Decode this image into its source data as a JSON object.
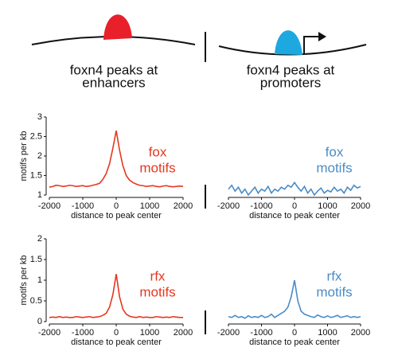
{
  "diagram": {
    "left_label": [
      "foxn4 peaks at",
      "enhancers"
    ],
    "right_label": [
      "foxn4 peaks at",
      "promoters"
    ]
  },
  "chart_data": [
    {
      "type": "line",
      "annotation": [
        "fox",
        "motifs"
      ],
      "xlabel": "distance to peak center",
      "ylabel": "motifs per kb",
      "xlim": [
        -2000,
        2000
      ],
      "xticks": [
        -2000,
        -1000,
        0,
        1000,
        2000
      ],
      "ylim": [
        1,
        3
      ],
      "yticks": [
        1,
        1.5,
        2,
        2.5,
        3
      ],
      "x": [
        -2000,
        -1900,
        -1800,
        -1700,
        -1600,
        -1500,
        -1400,
        -1300,
        -1200,
        -1100,
        -1000,
        -900,
        -800,
        -700,
        -600,
        -500,
        -400,
        -300,
        -200,
        -100,
        0,
        100,
        200,
        300,
        400,
        500,
        600,
        700,
        800,
        900,
        1000,
        1100,
        1200,
        1300,
        1400,
        1500,
        1600,
        1700,
        1800,
        1900,
        2000
      ],
      "series": [
        {
          "color": "#e5381f",
          "values": [
            1.2,
            1.22,
            1.25,
            1.24,
            1.22,
            1.23,
            1.25,
            1.24,
            1.22,
            1.23,
            1.24,
            1.22,
            1.23,
            1.25,
            1.27,
            1.3,
            1.4,
            1.55,
            1.8,
            2.2,
            2.65,
            2.15,
            1.75,
            1.5,
            1.38,
            1.32,
            1.28,
            1.25,
            1.24,
            1.22,
            1.23,
            1.24,
            1.22,
            1.21,
            1.23,
            1.24,
            1.22,
            1.21,
            1.22,
            1.23,
            1.22
          ]
        }
      ]
    },
    {
      "type": "line",
      "annotation": [
        "fox",
        "motifs"
      ],
      "xlabel": "distance to peak center",
      "xlim": [
        -2000,
        2000
      ],
      "xticks": [
        -2000,
        -1000,
        0,
        1000,
        2000
      ],
      "ylim": [
        1,
        3
      ],
      "x": [
        -2000,
        -1900,
        -1800,
        -1700,
        -1600,
        -1500,
        -1400,
        -1300,
        -1200,
        -1100,
        -1000,
        -900,
        -800,
        -700,
        -600,
        -500,
        -400,
        -300,
        -200,
        -100,
        0,
        100,
        200,
        300,
        400,
        500,
        600,
        700,
        800,
        900,
        1000,
        1100,
        1200,
        1300,
        1400,
        1500,
        1600,
        1700,
        1800,
        1900,
        2000
      ],
      "series": [
        {
          "color": "#4a8cc6",
          "values": [
            1.15,
            1.25,
            1.1,
            1.2,
            1.05,
            1.15,
            1.0,
            1.1,
            1.2,
            1.05,
            1.15,
            1.1,
            1.22,
            1.05,
            1.15,
            1.1,
            1.2,
            1.15,
            1.25,
            1.2,
            1.32,
            1.2,
            1.1,
            1.22,
            1.05,
            1.15,
            1.0,
            1.1,
            1.18,
            1.05,
            1.12,
            1.08,
            1.2,
            1.1,
            1.15,
            1.05,
            1.2,
            1.12,
            1.25,
            1.18,
            1.22
          ]
        }
      ]
    },
    {
      "type": "line",
      "annotation": [
        "rfx",
        "motifs"
      ],
      "xlabel": "distance to peak center",
      "ylabel": "motifs per kb",
      "xlim": [
        -2000,
        2000
      ],
      "xticks": [
        -2000,
        -1000,
        0,
        1000,
        2000
      ],
      "ylim": [
        0,
        2
      ],
      "yticks": [
        0,
        0.5,
        1,
        1.5,
        2
      ],
      "x": [
        -2000,
        -1900,
        -1800,
        -1700,
        -1600,
        -1500,
        -1400,
        -1300,
        -1200,
        -1100,
        -1000,
        -900,
        -800,
        -700,
        -600,
        -500,
        -400,
        -300,
        -200,
        -100,
        0,
        100,
        200,
        300,
        400,
        500,
        600,
        700,
        800,
        900,
        1000,
        1100,
        1200,
        1300,
        1400,
        1500,
        1600,
        1700,
        1800,
        1900,
        2000
      ],
      "series": [
        {
          "color": "#e5381f",
          "values": [
            0.1,
            0.11,
            0.1,
            0.12,
            0.1,
            0.11,
            0.1,
            0.1,
            0.12,
            0.11,
            0.1,
            0.11,
            0.12,
            0.1,
            0.11,
            0.12,
            0.15,
            0.2,
            0.35,
            0.65,
            1.15,
            0.6,
            0.3,
            0.18,
            0.13,
            0.11,
            0.1,
            0.12,
            0.1,
            0.11,
            0.1,
            0.1,
            0.12,
            0.11,
            0.1,
            0.11,
            0.1,
            0.12,
            0.11,
            0.1,
            0.1
          ]
        }
      ]
    },
    {
      "type": "line",
      "annotation": [
        "rfx",
        "motifs"
      ],
      "xlabel": "distance to peak center",
      "xlim": [
        -2000,
        2000
      ],
      "xticks": [
        -2000,
        -1000,
        0,
        1000,
        2000
      ],
      "ylim": [
        0,
        2
      ],
      "x": [
        -2000,
        -1900,
        -1800,
        -1700,
        -1600,
        -1500,
        -1400,
        -1300,
        -1200,
        -1100,
        -1000,
        -900,
        -800,
        -700,
        -600,
        -500,
        -400,
        -300,
        -200,
        -100,
        0,
        100,
        200,
        300,
        400,
        500,
        600,
        700,
        800,
        900,
        1000,
        1100,
        1200,
        1300,
        1400,
        1500,
        1600,
        1700,
        1800,
        1900,
        2000
      ],
      "series": [
        {
          "color": "#4a8cc6",
          "values": [
            0.12,
            0.1,
            0.15,
            0.1,
            0.12,
            0.08,
            0.14,
            0.1,
            0.12,
            0.1,
            0.15,
            0.1,
            0.12,
            0.18,
            0.1,
            0.15,
            0.2,
            0.25,
            0.35,
            0.6,
            1.0,
            0.5,
            0.25,
            0.18,
            0.15,
            0.12,
            0.1,
            0.16,
            0.12,
            0.1,
            0.14,
            0.1,
            0.12,
            0.15,
            0.1,
            0.12,
            0.14,
            0.1,
            0.12,
            0.1,
            0.12
          ]
        }
      ]
    }
  ]
}
